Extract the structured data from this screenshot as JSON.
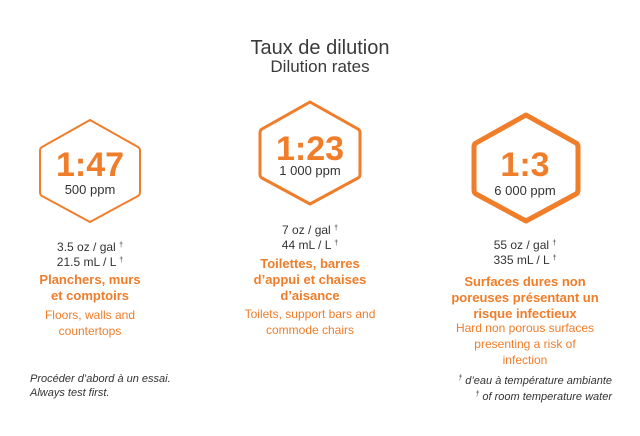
{
  "title": {
    "fr": "Taux de dilution",
    "en": "Dilution rates"
  },
  "columns": [
    {
      "ratio": "1:47",
      "ppm": "500 ppm",
      "dose_oz": "3.5 oz / gal",
      "dose_ml": "21.5 mL / L",
      "dose_mark": "†",
      "surface_fr": [
        "Planchers, murs",
        "et comptoirs"
      ],
      "surface_en": [
        "Floors, walls and",
        "countertops"
      ],
      "hex_stroke": "thin"
    },
    {
      "ratio": "1:23",
      "ppm": "1 000 ppm",
      "dose_oz": "7 oz / gal",
      "dose_ml": "44 mL / L",
      "dose_mark": "†",
      "surface_fr": [
        "Toilettes, barres",
        "d’appui et chaises",
        "d’aisance"
      ],
      "surface_en": [
        "Toilets, support bars and",
        "commode chairs"
      ],
      "hex_stroke": "medium"
    },
    {
      "ratio": "1:3",
      "ppm": "6 000 ppm",
      "dose_oz": "55 oz / gal",
      "dose_ml": "335 mL / L",
      "dose_mark": "†",
      "surface_fr": [
        "Surfaces dures non",
        "poreuses présentant un",
        "risque infectieux"
      ],
      "surface_en": [
        "Hard non porous surfaces",
        "presenting a risk of",
        "infection"
      ],
      "hex_stroke": "thick"
    }
  ],
  "note_left": {
    "fr": "Procéder d’abord à un essai.",
    "en": "Always test first."
  },
  "note_right": {
    "mark": "†",
    "fr": "d’eau à température ambiante",
    "en": "of room temperature water"
  },
  "colors": {
    "accent": "#ef7d2a",
    "text": "#333333"
  }
}
